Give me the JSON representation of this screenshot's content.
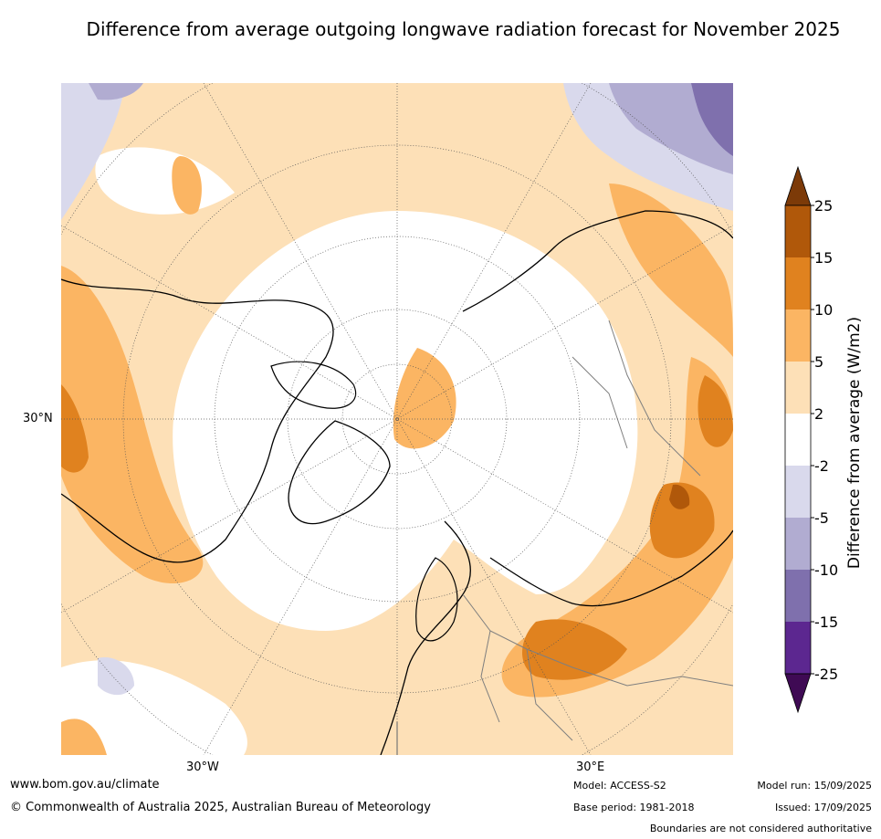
{
  "title": "Difference from average outgoing longwave radiation forecast for November 2025",
  "map": {
    "lat_labels": [
      "30°N"
    ],
    "lon_labels": [
      "30°W",
      "30°E"
    ],
    "colors": {
      "c_n25": "#3f0a54",
      "c_n15": "#5c2790",
      "c_n10": "#7f70ad",
      "c_n5": "#b1acd1",
      "c_n2": "#d9d9ec",
      "c_0": "#ffffff",
      "c_2": "#fde0b7",
      "c_5": "#fbb563",
      "c_10": "#e0821f",
      "c_15": "#b0580a",
      "c_25": "#7c3a08"
    }
  },
  "colorbar": {
    "label": "Difference from average (W/m2)",
    "ticks": [
      "25",
      "15",
      "10",
      "5",
      "2",
      "-2",
      "-5",
      "-10",
      "-15",
      "-25"
    ],
    "bin_colors_top_to_bottom": [
      "#b0580a",
      "#e0821f",
      "#fbb563",
      "#fde0b7",
      "#ffffff",
      "#d9d9ec",
      "#b1acd1",
      "#7f70ad",
      "#5c2790"
    ],
    "extend_top_color": "#7c3a08",
    "extend_bottom_color": "#3f0a54"
  },
  "footer": {
    "url": "www.bom.gov.au/climate",
    "copyright": "© Commonwealth of Australia 2025, Australian Bureau of Meteorology",
    "model": "Model: ACCESS-S2",
    "base_period": "Base period: 1981-2018",
    "model_run": "Model run: 15/09/2025",
    "issued": "Issued: 17/09/2025",
    "boundaries": "Boundaries are not considered authoritative"
  }
}
